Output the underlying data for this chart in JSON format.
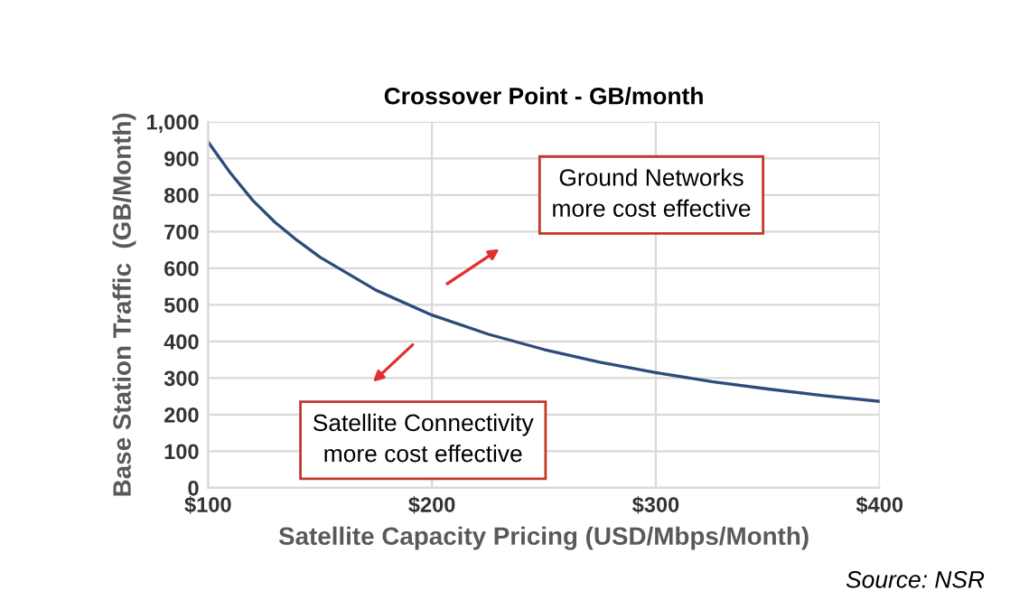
{
  "chart_data": {
    "type": "line",
    "title": "Crossover Point - GB/month",
    "xlabel": "Satellite Capacity Pricing (USD/Mbps/Month)",
    "ylabel": "Base Station Traffic  (GB/Month)",
    "x": [
      100,
      110,
      120,
      130,
      140,
      150,
      175,
      200,
      225,
      250,
      275,
      300,
      325,
      350,
      375,
      400
    ],
    "series": [
      {
        "color": "#2f4b7c",
        "values": [
          945,
          860,
          785,
          725,
          675,
          630,
          540,
          472,
          420,
          378,
          343,
          315,
          290,
          270,
          252,
          236
        ]
      }
    ],
    "xlim": [
      100,
      400
    ],
    "xticks": [
      {
        "value": 100,
        "label": "$100"
      },
      {
        "value": 200,
        "label": "$200"
      },
      {
        "value": 300,
        "label": "$300"
      },
      {
        "value": 400,
        "label": "$400"
      }
    ],
    "ylim": [
      0,
      1000
    ],
    "yticks": [
      0,
      100,
      200,
      300,
      400,
      500,
      600,
      700,
      800,
      900,
      {
        "value": 1000,
        "label": "1,000"
      }
    ],
    "grid": true,
    "marker": "none",
    "line_style": "solid",
    "annotations": [
      "Ground Networks\nmore cost effective",
      "Satellite Connectivity\nmore cost effective",
      "Source: NSR"
    ]
  }
}
